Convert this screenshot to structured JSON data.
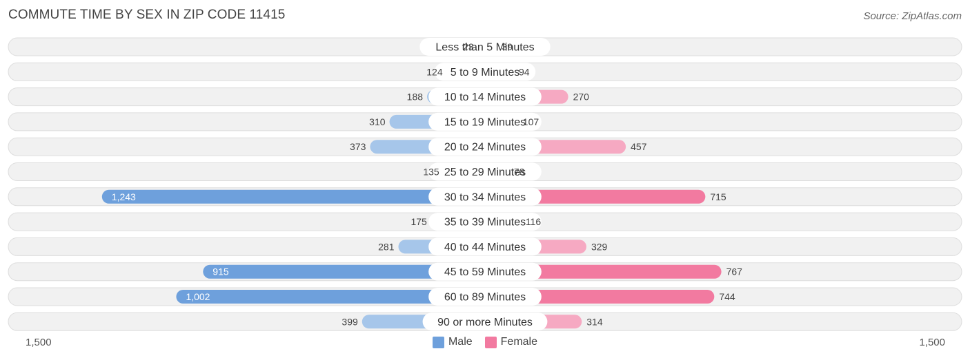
{
  "title": "COMMUTE TIME BY SEX IN ZIP CODE 11415",
  "source": "Source: ZipAtlas.com",
  "colors": {
    "male_dark": "#6ea0dc",
    "male_light": "#a6c6ea",
    "female_dark": "#f27aa0",
    "female_light": "#f6a9c2",
    "row_bg": "#f1f1f1",
    "row_border": "#dddddd"
  },
  "legend": {
    "male": "Male",
    "female": "Female"
  },
  "axis": {
    "left_label": "1,500",
    "right_label": "1,500"
  },
  "chart_data": {
    "type": "bar",
    "orientation": "horizontal-diverging",
    "categories": [
      "Less than 5 Minutes",
      "5 to 9 Minutes",
      "10 to 14 Minutes",
      "15 to 19 Minutes",
      "20 to 24 Minutes",
      "25 to 29 Minutes",
      "30 to 34 Minutes",
      "35 to 39 Minutes",
      "40 to 44 Minutes",
      "45 to 59 Minutes",
      "60 to 89 Minutes",
      "90 or more Minutes"
    ],
    "series": [
      {
        "name": "Male",
        "values": [
          23,
          124,
          188,
          310,
          373,
          135,
          1243,
          175,
          281,
          915,
          1002,
          399
        ]
      },
      {
        "name": "Female",
        "values": [
          39,
          94,
          270,
          107,
          457,
          78,
          715,
          116,
          329,
          767,
          744,
          314
        ]
      }
    ],
    "value_labels": {
      "male": [
        "23",
        "124",
        "188",
        "310",
        "373",
        "135",
        "1,243",
        "175",
        "281",
        "915",
        "1,002",
        "399"
      ],
      "female": [
        "39",
        "94",
        "270",
        "107",
        "457",
        "78",
        "715",
        "116",
        "329",
        "767",
        "744",
        "314"
      ]
    },
    "xlim": [
      -1500,
      1500
    ],
    "title": "COMMUTE TIME BY SEX IN ZIP CODE 11415",
    "legend_position": "bottom-center"
  }
}
